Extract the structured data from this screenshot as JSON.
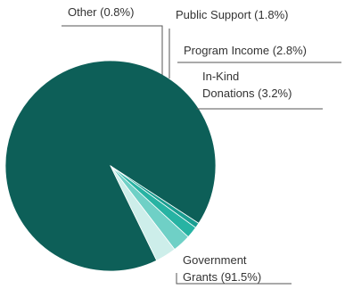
{
  "chart_data": {
    "type": "pie",
    "title": "",
    "slices": [
      {
        "name": "Government Grants",
        "value": 91.5,
        "color": "#0d5f58",
        "label_lines": [
          "Government",
          "Grants (91.5%)"
        ]
      },
      {
        "name": "Other",
        "value": 0.8,
        "color": "#1a9e91",
        "label_lines": [
          "Other (0.8%)"
        ]
      },
      {
        "name": "Public Support",
        "value": 1.8,
        "color": "#27b3a3",
        "label_lines": [
          "Public Support (1.8%)"
        ]
      },
      {
        "name": "Program Income",
        "value": 2.8,
        "color": "#6fd0c6",
        "label_lines": [
          "Program Income (2.8%)"
        ]
      },
      {
        "name": "In-Kind Donations",
        "value": 3.2,
        "color": "#cdeeea",
        "label_lines": [
          "In-Kind",
          "Donations (3.2%)"
        ]
      }
    ]
  }
}
